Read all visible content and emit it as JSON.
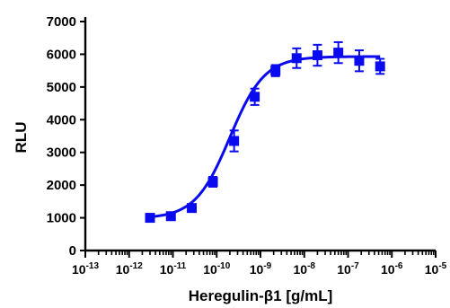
{
  "chart_data": {
    "type": "scatter",
    "title": "",
    "xlabel": "Heregulin-β1 [g/mL]",
    "ylabel": "RLU",
    "x_scale": "log",
    "xlim": [
      1e-13,
      1e-05
    ],
    "ylim": [
      0,
      7000
    ],
    "y_ticks": [
      0,
      1000,
      2000,
      3000,
      4000,
      5000,
      6000,
      7000
    ],
    "y_tick_labels": [
      "0",
      "1000",
      "2000",
      "3000",
      "4000",
      "5000",
      "6000",
      "7000"
    ],
    "x_ticks": [
      {
        "base": "10",
        "exp": "-13",
        "value": 1e-13
      },
      {
        "base": "10",
        "exp": "-12",
        "value": 1e-12
      },
      {
        "base": "10",
        "exp": "-11",
        "value": 1e-11
      },
      {
        "base": "10",
        "exp": "-10",
        "value": 1e-10
      },
      {
        "base": "10",
        "exp": "-9",
        "value": 1e-09
      },
      {
        "base": "10",
        "exp": "-8",
        "value": 1e-08
      },
      {
        "base": "10",
        "exp": "-7",
        "value": 1e-07
      },
      {
        "base": "10",
        "exp": "-6",
        "value": 1e-06
      },
      {
        "base": "10",
        "exp": "-5",
        "value": 1e-05
      }
    ],
    "series": [
      {
        "color": "#0a0aef",
        "marker": "square",
        "points": [
          {
            "x": 3e-12,
            "y": 1000,
            "err": 40
          },
          {
            "x": 9e-12,
            "y": 1050,
            "err": 50
          },
          {
            "x": 2.7e-11,
            "y": 1300,
            "err": 60
          },
          {
            "x": 8.2e-11,
            "y": 2100,
            "err": 150
          },
          {
            "x": 2.5e-10,
            "y": 3350,
            "err": 320
          },
          {
            "x": 7.4e-10,
            "y": 4700,
            "err": 250
          },
          {
            "x": 2.2e-09,
            "y": 5500,
            "err": 170
          },
          {
            "x": 6.7e-09,
            "y": 5880,
            "err": 300
          },
          {
            "x": 2e-08,
            "y": 5970,
            "err": 320
          },
          {
            "x": 6e-08,
            "y": 6050,
            "err": 320
          },
          {
            "x": 1.8e-07,
            "y": 5800,
            "err": 320
          },
          {
            "x": 5.4e-07,
            "y": 5630,
            "err": 230
          }
        ],
        "fit": {
          "model": "4PL",
          "bottom": 980,
          "top": 5930,
          "log_ec50": -9.7,
          "hill": 1.1,
          "x_range": [
            3e-12,
            5.4e-07
          ]
        }
      }
    ],
    "grid": false,
    "legend": "none"
  }
}
